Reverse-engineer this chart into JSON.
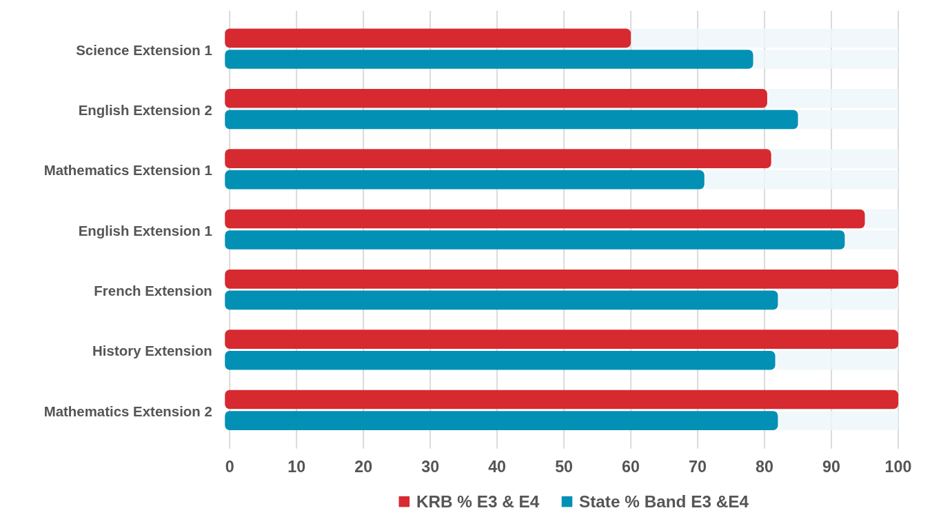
{
  "chart_data": {
    "type": "bar",
    "orientation": "horizontal",
    "categories": [
      "Science Extension 1",
      "English Extension 2",
      "Mathematics Extension 1",
      "English Extension 1",
      "French Extension",
      "History Extension",
      "Mathematics Extension 2"
    ],
    "series": [
      {
        "name": "KRB % E3 & E4",
        "color": "#d62a30",
        "values": [
          60,
          80.4,
          81,
          95,
          100,
          100,
          100
        ]
      },
      {
        "name": "State % Band E3 &E4",
        "color": "#0291b4",
        "values": [
          78.3,
          85,
          71,
          92,
          82,
          81.6,
          82
        ]
      }
    ],
    "xlim": [
      0,
      100
    ],
    "xticks": [
      0,
      10,
      20,
      30,
      40,
      50,
      60,
      70,
      80,
      90,
      100
    ],
    "grid": "x",
    "legend": "bottom"
  }
}
